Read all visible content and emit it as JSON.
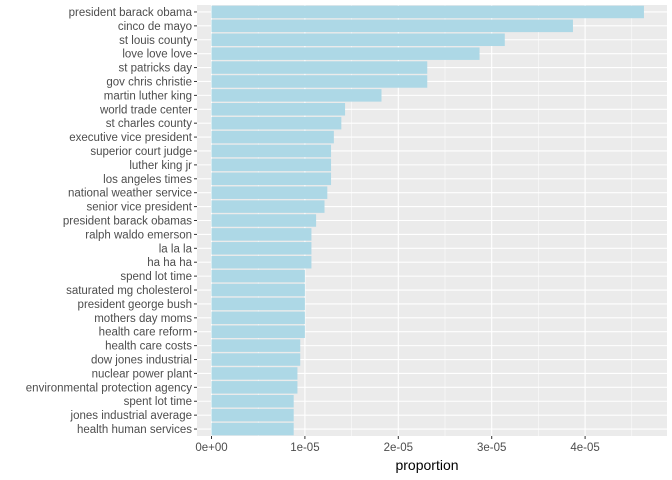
{
  "colors": {
    "panel_background": "#EBEBEB",
    "grid_major": "#FFFFFF",
    "bar_fill": "#ADD8E6",
    "tick_text": "#4D4D4D",
    "axis_title_text": "#000000"
  },
  "chart_data": {
    "type": "bar",
    "orientation": "horizontal",
    "title": "",
    "xlabel": "proportion",
    "ylabel": "",
    "xlim": [
      0,
      4.9e-05
    ],
    "xticks": [
      0,
      1e-05,
      2e-05,
      3e-05,
      4e-05
    ],
    "xtick_labels": [
      "0e+00",
      "1e-05",
      "2e-05",
      "3e-05",
      "4e-05"
    ],
    "grid": true,
    "legend": "none",
    "categories": [
      "president barack obama",
      "cinco de mayo",
      "st louis county",
      "love love love",
      "st patricks day",
      "gov chris christie",
      "martin luther king",
      "world trade center",
      "st charles county",
      "executive vice president",
      "superior court judge",
      "luther king jr",
      "los angeles times",
      "national weather service",
      "senior vice president",
      "president barack obamas",
      "ralph waldo emerson",
      "la la la",
      "ha ha ha",
      "spend lot time",
      "saturated mg cholesterol",
      "president george bush",
      "mothers day moms",
      "health care reform",
      "health care costs",
      "dow jones industrial",
      "nuclear power plant",
      "environmental protection agency",
      "spent lot time",
      "jones industrial average",
      "health human services"
    ],
    "values": [
      4.63e-05,
      3.87e-05,
      3.14e-05,
      2.87e-05,
      2.31e-05,
      2.31e-05,
      1.82e-05,
      1.43e-05,
      1.39e-05,
      1.31e-05,
      1.28e-05,
      1.28e-05,
      1.28e-05,
      1.24e-05,
      1.21e-05,
      1.12e-05,
      1.07e-05,
      1.07e-05,
      1.07e-05,
      1e-05,
      1e-05,
      1e-05,
      1e-05,
      1e-05,
      9.5e-06,
      9.5e-06,
      9.2e-06,
      9.2e-06,
      8.8e-06,
      8.8e-06,
      8.8e-06
    ]
  }
}
